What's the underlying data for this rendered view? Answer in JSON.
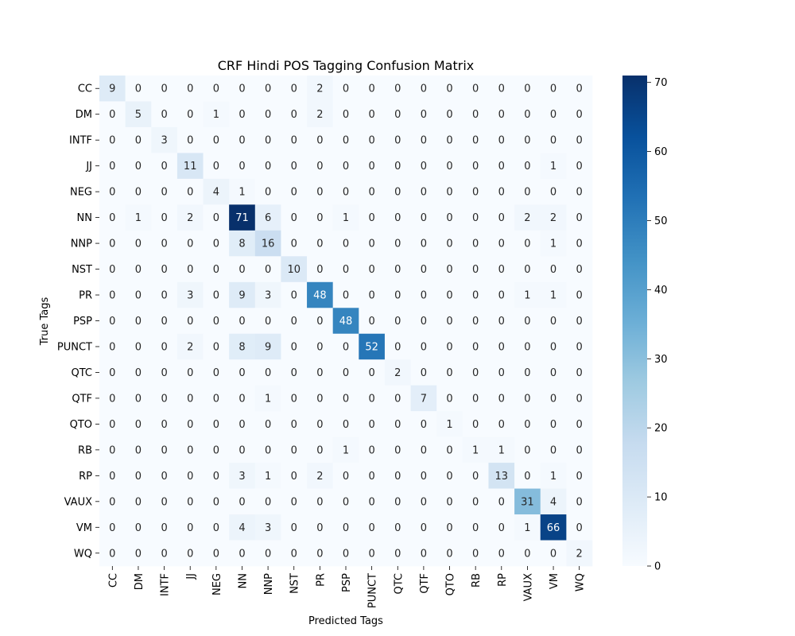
{
  "chart_data": {
    "type": "heatmap",
    "title": "CRF Hindi POS Tagging Confusion Matrix",
    "xlabel": "Predicted Tags",
    "ylabel": "True Tags",
    "x_categories": [
      "CC",
      "DM",
      "INTF",
      "JJ",
      "NEG",
      "NN",
      "NNP",
      "NST",
      "PR",
      "PSP",
      "PUNCT",
      "QTC",
      "QTF",
      "QTO",
      "RB",
      "RP",
      "VAUX",
      "VM",
      "WQ"
    ],
    "y_categories": [
      "CC",
      "DM",
      "INTF",
      "JJ",
      "NEG",
      "NN",
      "NNP",
      "NST",
      "PR",
      "PSP",
      "PUNCT",
      "QTC",
      "QTF",
      "QTO",
      "RB",
      "RP",
      "VAUX",
      "VM",
      "WQ"
    ],
    "matrix": [
      [
        9,
        0,
        0,
        0,
        0,
        0,
        0,
        0,
        2,
        0,
        0,
        0,
        0,
        0,
        0,
        0,
        0,
        0,
        0
      ],
      [
        0,
        5,
        0,
        0,
        1,
        0,
        0,
        0,
        2,
        0,
        0,
        0,
        0,
        0,
        0,
        0,
        0,
        0,
        0
      ],
      [
        0,
        0,
        3,
        0,
        0,
        0,
        0,
        0,
        0,
        0,
        0,
        0,
        0,
        0,
        0,
        0,
        0,
        0,
        0
      ],
      [
        0,
        0,
        0,
        11,
        0,
        0,
        0,
        0,
        0,
        0,
        0,
        0,
        0,
        0,
        0,
        0,
        0,
        1,
        0
      ],
      [
        0,
        0,
        0,
        0,
        4,
        1,
        0,
        0,
        0,
        0,
        0,
        0,
        0,
        0,
        0,
        0,
        0,
        0,
        0
      ],
      [
        0,
        1,
        0,
        2,
        0,
        71,
        6,
        0,
        0,
        1,
        0,
        0,
        0,
        0,
        0,
        0,
        2,
        2,
        0
      ],
      [
        0,
        0,
        0,
        0,
        0,
        8,
        16,
        0,
        0,
        0,
        0,
        0,
        0,
        0,
        0,
        0,
        0,
        1,
        0
      ],
      [
        0,
        0,
        0,
        0,
        0,
        0,
        0,
        10,
        0,
        0,
        0,
        0,
        0,
        0,
        0,
        0,
        0,
        0,
        0
      ],
      [
        0,
        0,
        0,
        3,
        0,
        9,
        3,
        0,
        48,
        0,
        0,
        0,
        0,
        0,
        0,
        0,
        1,
        1,
        0
      ],
      [
        0,
        0,
        0,
        0,
        0,
        0,
        0,
        0,
        0,
        48,
        0,
        0,
        0,
        0,
        0,
        0,
        0,
        0,
        0
      ],
      [
        0,
        0,
        0,
        2,
        0,
        8,
        9,
        0,
        0,
        0,
        52,
        0,
        0,
        0,
        0,
        0,
        0,
        0,
        0
      ],
      [
        0,
        0,
        0,
        0,
        0,
        0,
        0,
        0,
        0,
        0,
        0,
        2,
        0,
        0,
        0,
        0,
        0,
        0,
        0
      ],
      [
        0,
        0,
        0,
        0,
        0,
        0,
        1,
        0,
        0,
        0,
        0,
        0,
        7,
        0,
        0,
        0,
        0,
        0,
        0
      ],
      [
        0,
        0,
        0,
        0,
        0,
        0,
        0,
        0,
        0,
        0,
        0,
        0,
        0,
        1,
        0,
        0,
        0,
        0,
        0
      ],
      [
        0,
        0,
        0,
        0,
        0,
        0,
        0,
        0,
        0,
        1,
        0,
        0,
        0,
        0,
        1,
        1,
        0,
        0,
        0
      ],
      [
        0,
        0,
        0,
        0,
        0,
        3,
        1,
        0,
        2,
        0,
        0,
        0,
        0,
        0,
        0,
        13,
        0,
        1,
        0
      ],
      [
        0,
        0,
        0,
        0,
        0,
        0,
        0,
        0,
        0,
        0,
        0,
        0,
        0,
        0,
        0,
        0,
        31,
        4,
        0
      ],
      [
        0,
        0,
        0,
        0,
        0,
        4,
        3,
        0,
        0,
        0,
        0,
        0,
        0,
        0,
        0,
        0,
        1,
        66,
        0
      ],
      [
        0,
        0,
        0,
        0,
        0,
        0,
        0,
        0,
        0,
        0,
        0,
        0,
        0,
        0,
        0,
        0,
        0,
        0,
        2
      ]
    ],
    "value_range": [
      0,
      71
    ],
    "colormap": "Blues",
    "colorbar_ticks": [
      0,
      10,
      20,
      30,
      40,
      50,
      60,
      70
    ],
    "grid": false,
    "legend": "colorbar-right"
  }
}
